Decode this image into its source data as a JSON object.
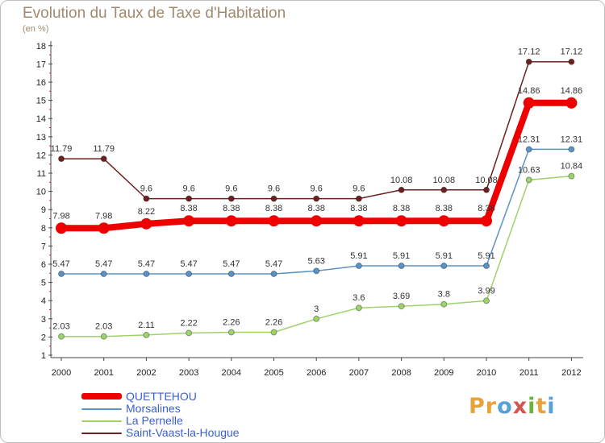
{
  "title": "Evolution du Taux de Taxe d'Habitation",
  "unit": "(en %)",
  "logo": {
    "text": "Proxiti",
    "colors": [
      "#e8a23b",
      "#e8a23b",
      "#5aa0d8",
      "#d9534f",
      "#6cb33e",
      "#e8a23b",
      "#5aa0d8"
    ]
  },
  "chart_data": {
    "type": "line",
    "categories": [
      "2000",
      "2001",
      "2002",
      "2003",
      "2004",
      "2005",
      "2006",
      "2007",
      "2008",
      "2009",
      "2010",
      "2011",
      "2012"
    ],
    "y_ticks": [
      "1",
      "2",
      "3",
      "4",
      "5",
      "6",
      "7",
      "8",
      "9",
      "10",
      "11",
      "12",
      "13",
      "14",
      "15",
      "16",
      "17",
      "18"
    ],
    "ylim": [
      1,
      18
    ],
    "grid": false,
    "legend_position": "bottom-left",
    "series": [
      {
        "name": "Saint-Vaast-la-Hougue",
        "color": "#6e2020",
        "values": [
          11.79,
          11.79,
          9.6,
          9.6,
          9.6,
          9.6,
          9.6,
          9.6,
          10.08,
          10.08,
          10.08,
          17.12,
          17.12
        ],
        "labels": [
          "11.79",
          "11.79",
          "9.6",
          "9.6",
          "9.6",
          "9.6",
          "9.6",
          "9.6",
          "10.08",
          "10.08",
          "10.08",
          "17.12",
          "17.12"
        ]
      },
      {
        "name": "Morsalines",
        "color": "#5b93c7",
        "values": [
          5.47,
          5.47,
          5.47,
          5.47,
          5.47,
          5.47,
          5.63,
          5.91,
          5.91,
          5.91,
          5.91,
          12.31,
          12.31
        ],
        "labels": [
          "5.47",
          "5.47",
          "5.47",
          "5.47",
          "5.47",
          "5.47",
          "5.63",
          "5.91",
          "5.91",
          "5.91",
          "5.91",
          "12.31",
          "12.31"
        ]
      },
      {
        "name": "La Pernelle",
        "color": "#9ed36a",
        "values": [
          2.03,
          2.03,
          2.11,
          2.22,
          2.26,
          2.26,
          3,
          3.6,
          3.69,
          3.8,
          3.99,
          10.63,
          10.84
        ],
        "labels": [
          "2.03",
          "2.03",
          "2.11",
          "2.22",
          "2.26",
          "2.26",
          "3",
          "3.6",
          "3.69",
          "3.8",
          "3.99",
          "10.63",
          "10.84"
        ]
      },
      {
        "name": "QUETTEHOU",
        "color": "#ee0000",
        "values": [
          7.98,
          7.98,
          8.22,
          8.38,
          8.38,
          8.38,
          8.38,
          8.38,
          8.38,
          8.38,
          8.38,
          14.86,
          14.86
        ],
        "labels": [
          "7.98",
          "7.98",
          "8.22",
          "8.38",
          "8.38",
          "8.38",
          "8.38",
          "8.38",
          "8.38",
          "8.38",
          "8.38",
          "14.86",
          "14.86"
        ]
      }
    ],
    "legend": [
      {
        "name": "QUETTEHOU",
        "color": "#ee0000",
        "thick": true
      },
      {
        "name": "Morsalines",
        "color": "#5b93c7",
        "thick": false
      },
      {
        "name": "La Pernelle",
        "color": "#9ed36a",
        "thick": false
      },
      {
        "name": "Saint-Vaast-la-Hougue",
        "color": "#6e2020",
        "thick": false
      }
    ]
  }
}
